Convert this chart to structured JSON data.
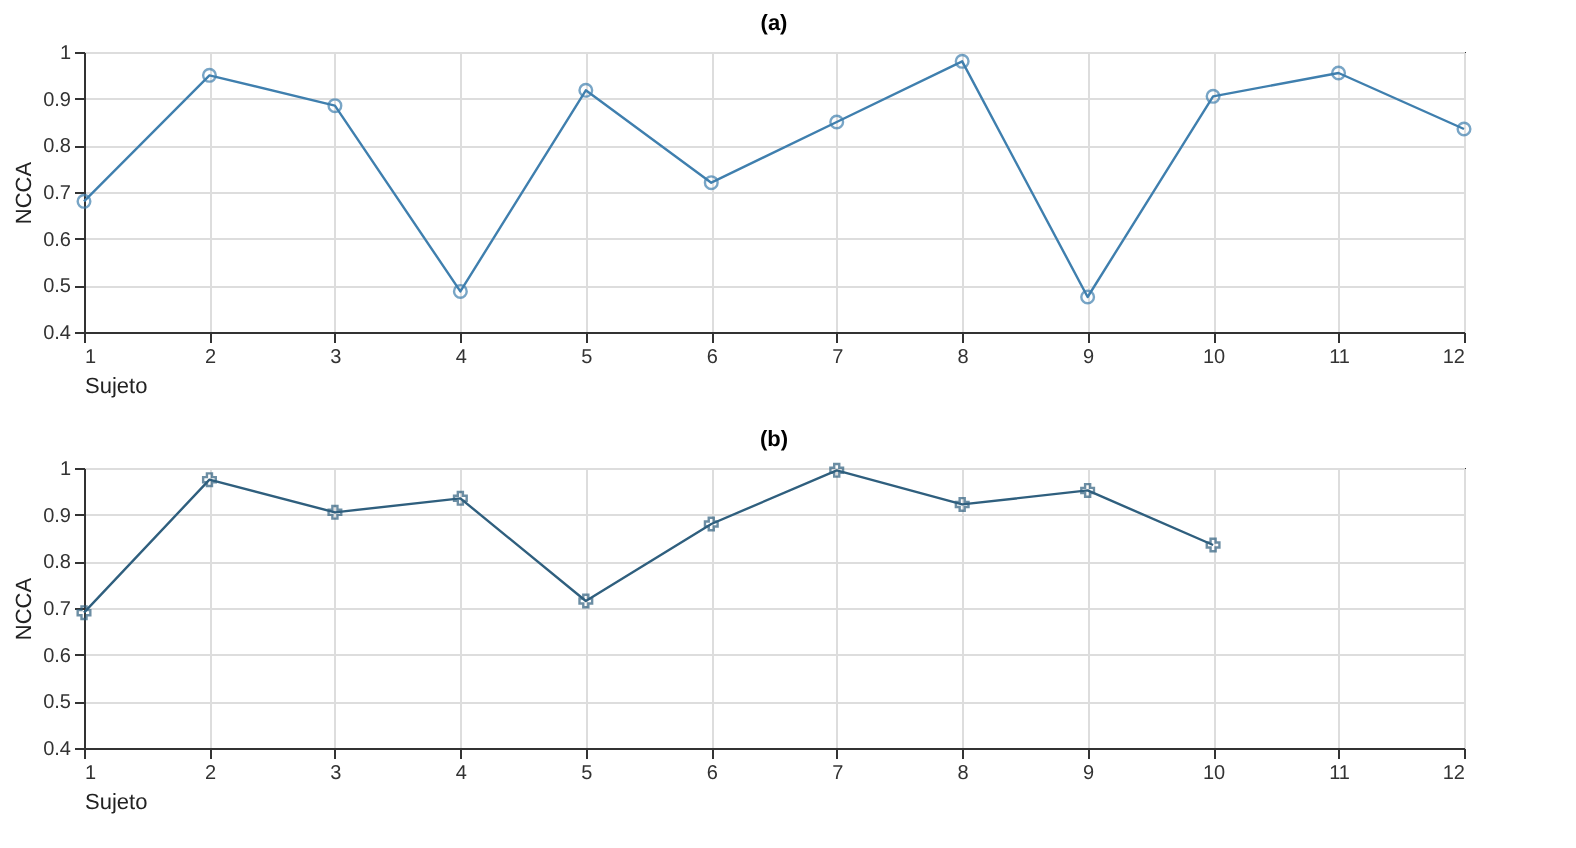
{
  "chart_data": [
    {
      "type": "line",
      "title": "(a)",
      "xlabel": "Sujeto",
      "ylabel": "NCCA",
      "x": [
        1,
        2,
        3,
        4,
        5,
        6,
        7,
        8,
        9,
        10,
        11,
        12
      ],
      "series": [
        {
          "color": "#3f7fae",
          "values": [
            0.68,
            0.95,
            0.885,
            0.487,
            0.918,
            0.72,
            0.85,
            0.98,
            0.475,
            0.905,
            0.955,
            0.835
          ]
        }
      ],
      "xlim": [
        1,
        12
      ],
      "xticks": [
        1,
        2,
        3,
        4,
        5,
        6,
        7,
        8,
        9,
        10,
        11,
        12
      ],
      "ylim": [
        0.4,
        1
      ],
      "yticks": [
        0.4,
        0.5,
        0.6,
        0.7,
        0.8,
        0.9,
        1
      ],
      "grid": true,
      "marker": "circle",
      "line_style": "solid"
    },
    {
      "type": "line",
      "title": "(b)",
      "xlabel": "Sujeto",
      "ylabel": "NCCA",
      "x": [
        1,
        2,
        3,
        4,
        5,
        6,
        7,
        8,
        9,
        10
      ],
      "series": [
        {
          "color": "#2f5f7e",
          "values": [
            0.69,
            0.975,
            0.905,
            0.935,
            0.715,
            0.88,
            0.995,
            0.922,
            0.952,
            0.835
          ]
        }
      ],
      "xlim": [
        1,
        12
      ],
      "xticks": [
        1,
        2,
        3,
        4,
        5,
        6,
        7,
        8,
        9,
        10,
        11,
        12
      ],
      "ylim": [
        0.4,
        1
      ],
      "yticks": [
        0.4,
        0.5,
        0.6,
        0.7,
        0.8,
        0.9,
        1
      ],
      "grid": true,
      "marker": "cross",
      "line_style": "solid"
    }
  ]
}
